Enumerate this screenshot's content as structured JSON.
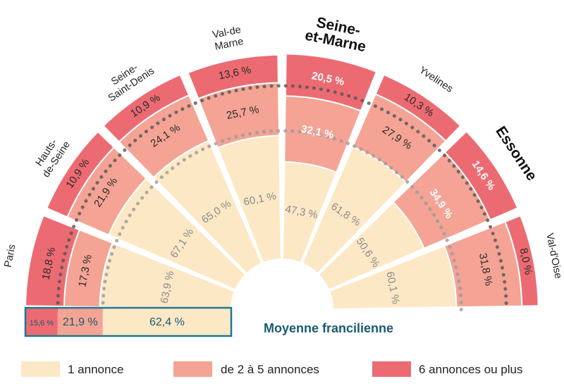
{
  "chart_data": {
    "type": "semicircle-stacked",
    "categories": [
      "Paris",
      "Hauts-de-Seine",
      "Seine-Saint-Denis",
      "Val-de Marne",
      "Seine-et-Marne",
      "Yvelines",
      "Essonne",
      "Val-d'Oise"
    ],
    "category_display": [
      {
        "lines": [
          "Paris"
        ],
        "emphasis": false
      },
      {
        "lines": [
          "Hauts-",
          "de-Seine"
        ],
        "emphasis": false
      },
      {
        "lines": [
          "Seine-",
          "Saint-Denis"
        ],
        "emphasis": false
      },
      {
        "lines": [
          "Val-de",
          "Marne"
        ],
        "emphasis": false
      },
      {
        "lines": [
          "Seine-",
          "et-Marne"
        ],
        "emphasis": true
      },
      {
        "lines": [
          "Yvelines"
        ],
        "emphasis": false
      },
      {
        "lines": [
          "Essonne"
        ],
        "emphasis": true
      },
      {
        "lines": [
          "Val-d'Oise"
        ],
        "emphasis": false
      }
    ],
    "series": [
      {
        "name": "1 annonce",
        "color": "#fde8c6",
        "values": [
          63.9,
          67.1,
          65.0,
          60.1,
          47.3,
          61.8,
          50.6,
          60.1
        ],
        "labels": [
          "63,9 %",
          "67,1 %",
          "65,0 %",
          "60,1 %",
          "47,3 %",
          "61,8 %",
          "50,6 %",
          "60,1 %"
        ]
      },
      {
        "name": "de 2 à 5 annonces",
        "color": "#f4a395",
        "values": [
          17.3,
          21.9,
          24.1,
          25.7,
          32.1,
          27.9,
          34.9,
          31.8
        ],
        "labels": [
          "17,3 %",
          "21,9 %",
          "24,1 %",
          "25,7 %",
          "32,1 %",
          "27,9 %",
          "34,9 %",
          "31,8 %"
        ]
      },
      {
        "name": "6 annonces ou plus",
        "color": "#ec6b72",
        "values": [
          18.8,
          10.9,
          10.9,
          13.6,
          20.5,
          10.3,
          14.6,
          8.0
        ],
        "labels": [
          "18,8 %",
          "10,9 %",
          "10,9 %",
          "13,6 %",
          "20,5 %",
          "10,3 %",
          "14,6 %",
          "8,0 %"
        ]
      }
    ],
    "average": {
      "title": "Moyenne francilienne",
      "values": [
        62.4,
        21.9,
        15.6
      ],
      "labels": [
        "62,4 %",
        "21,9 %",
        "15,6 %"
      ],
      "border_color": "#1d7891",
      "dot_color": "#555555",
      "text_color": "#1a5a72"
    },
    "legend": [
      {
        "label": "1 annonce",
        "color": "#fde8c6"
      },
      {
        "label": "de 2 à 5 annonces",
        "color": "#f4a395"
      },
      {
        "label": "6 annonces ou plus",
        "color": "#ec6b72"
      }
    ],
    "legend_position": "bottom"
  }
}
